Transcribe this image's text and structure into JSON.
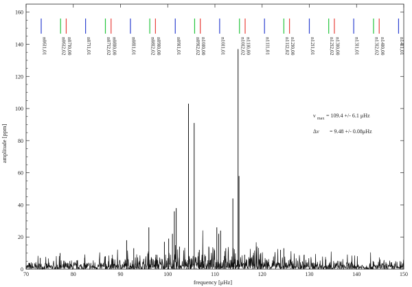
{
  "chart_data": {
    "type": "line",
    "xlabel": "frequency [μHz]",
    "ylabel": "amplitude [ppm]",
    "xlim": [
      70,
      150
    ],
    "ylim": [
      0,
      165
    ],
    "x_ticks": [
      70,
      80,
      90,
      100,
      110,
      120,
      130,
      140,
      150
    ],
    "y_ticks": [
      0,
      20,
      40,
      60,
      80,
      100,
      120,
      140,
      160
    ],
    "grid": false,
    "annotations": {
      "numax_sym": "ν",
      "numax_sub": "max",
      "numax_value": "= 109.4 +/- 6.1 μHz",
      "dnu_sym": "Δν",
      "dnu_value": "= 9.48 +/- 0.08μHz"
    },
    "mode_markers": [
      {
        "label": "n06l1,01",
        "freq": 73.2,
        "degree": 1
      },
      {
        "label": "n06l2,02",
        "freq": 77.3,
        "degree": 2
      },
      {
        "label": "n07l0,00",
        "freq": 78.5,
        "degree": 0
      },
      {
        "label": "n07l1,01",
        "freq": 82.6,
        "degree": 1
      },
      {
        "label": "n07l2,02",
        "freq": 86.8,
        "degree": 2
      },
      {
        "label": "n08l0,00",
        "freq": 88.0,
        "degree": 0
      },
      {
        "label": "n08l1,01",
        "freq": 92.1,
        "degree": 1
      },
      {
        "label": "n08l2,02",
        "freq": 96.2,
        "degree": 2
      },
      {
        "label": "n09l0,00",
        "freq": 97.4,
        "degree": 0
      },
      {
        "label": "n09l1,01",
        "freq": 101.6,
        "degree": 1
      },
      {
        "label": "n09l2,02",
        "freq": 105.7,
        "degree": 2
      },
      {
        "label": "n10l0,00",
        "freq": 106.9,
        "degree": 0
      },
      {
        "label": "n10l1,01",
        "freq": 111.0,
        "degree": 1
      },
      {
        "label": "n10l2,02",
        "freq": 115.2,
        "degree": 2
      },
      {
        "label": "n11l0,00",
        "freq": 116.4,
        "degree": 0
      },
      {
        "label": "n11l1,01",
        "freq": 120.5,
        "degree": 1
      },
      {
        "label": "n11l2,02",
        "freq": 124.6,
        "degree": 2
      },
      {
        "label": "n12l0,00",
        "freq": 125.8,
        "degree": 0
      },
      {
        "label": "n12l1,01",
        "freq": 130.0,
        "degree": 1
      },
      {
        "label": "n12l2,02",
        "freq": 134.1,
        "degree": 2
      },
      {
        "label": "n13l0,00",
        "freq": 135.3,
        "degree": 0
      },
      {
        "label": "n13l1,01",
        "freq": 139.4,
        "degree": 1
      },
      {
        "label": "n13l2,02",
        "freq": 143.6,
        "degree": 2
      },
      {
        "label": "n14l0,00",
        "freq": 144.8,
        "degree": 0
      },
      {
        "label": "n14l1,01",
        "freq": 148.9,
        "degree": 1
      }
    ],
    "degree_colors": {
      "0": "#e8403a",
      "1": "#2b3fd0",
      "2": "#22c43a"
    },
    "peaks": [
      {
        "x": 104.4,
        "y": 103
      },
      {
        "x": 105.6,
        "y": 91
      },
      {
        "x": 114.9,
        "y": 137
      },
      {
        "x": 115.1,
        "y": 58
      },
      {
        "x": 113.8,
        "y": 44
      },
      {
        "x": 101.8,
        "y": 38
      },
      {
        "x": 101.4,
        "y": 36
      },
      {
        "x": 96.0,
        "y": 26
      },
      {
        "x": 110.4,
        "y": 26
      },
      {
        "x": 111.2,
        "y": 24
      },
      {
        "x": 110.8,
        "y": 22
      },
      {
        "x": 101.0,
        "y": 22
      },
      {
        "x": 100.2,
        "y": 19
      },
      {
        "x": 91.3,
        "y": 18
      },
      {
        "x": 99.3,
        "y": 17
      },
      {
        "x": 92.8,
        "y": 13
      },
      {
        "x": 102.5,
        "y": 14
      },
      {
        "x": 108.7,
        "y": 14
      },
      {
        "x": 112.3,
        "y": 13
      },
      {
        "x": 106.7,
        "y": 12
      },
      {
        "x": 123.9,
        "y": 12
      },
      {
        "x": 124.6,
        "y": 13
      },
      {
        "x": 119.7,
        "y": 10
      },
      {
        "x": 128.9,
        "y": 9
      },
      {
        "x": 77.2,
        "y": 10
      },
      {
        "x": 73.0,
        "y": 7
      },
      {
        "x": 86.8,
        "y": 8
      },
      {
        "x": 82.4,
        "y": 7
      },
      {
        "x": 97.5,
        "y": 9
      },
      {
        "x": 116.3,
        "y": 9
      },
      {
        "x": 133.5,
        "y": 6
      },
      {
        "x": 139.0,
        "y": 5
      },
      {
        "x": 143.5,
        "y": 5
      }
    ]
  }
}
